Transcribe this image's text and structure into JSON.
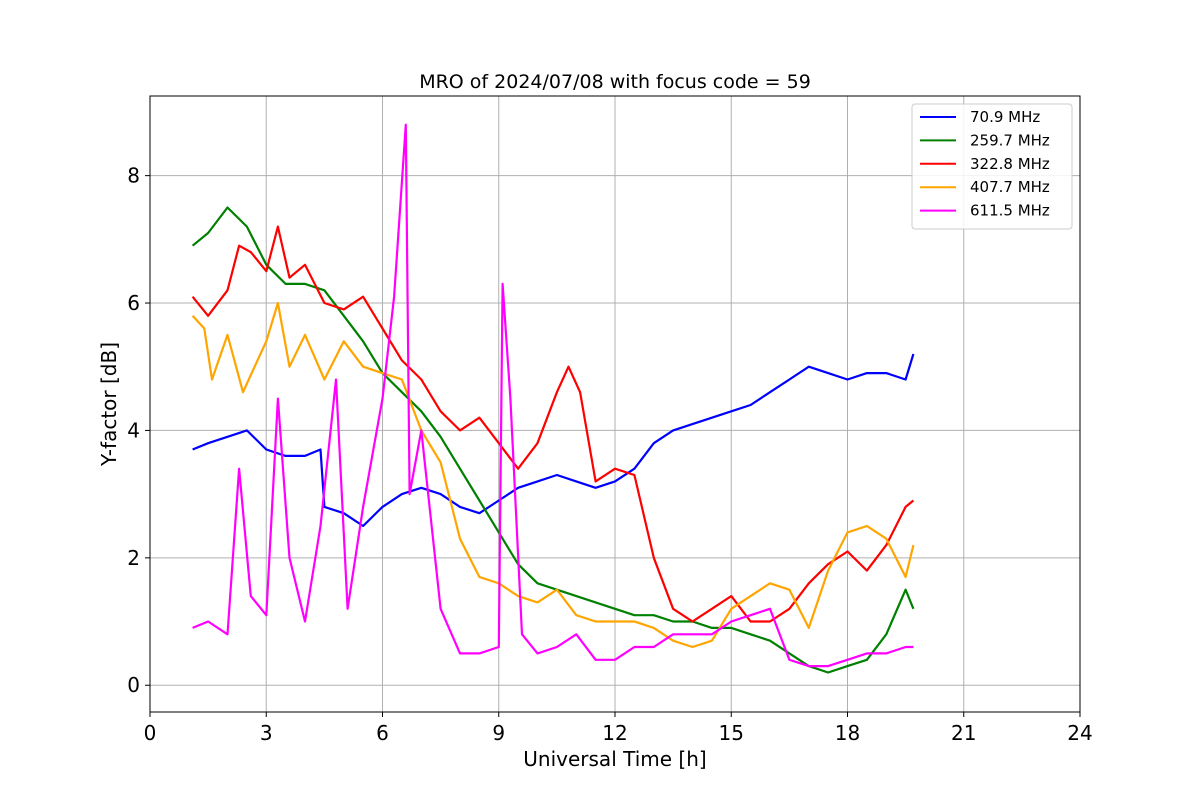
{
  "chart_data": {
    "type": "line",
    "title": "MRO of 2024/07/08 with focus code = 59",
    "xlabel": "Universal Time [h]",
    "ylabel": "Y-factor [dB]",
    "xlim": [
      0,
      24
    ],
    "ylim": [
      -0.42,
      9.25
    ],
    "xticks": [
      0,
      3,
      6,
      9,
      12,
      15,
      18,
      21,
      24
    ],
    "xtick_labels": [
      "0",
      "3",
      "6",
      "9",
      "12",
      "15",
      "18",
      "21",
      "24"
    ],
    "yticks": [
      0,
      2,
      4,
      6,
      8
    ],
    "ytick_labels": [
      "0",
      "2",
      "4",
      "6",
      "8"
    ],
    "grid": true,
    "legend_position": "top-right",
    "series": [
      {
        "name": " 70.9 MHz",
        "color": "#0000ff",
        "x": [
          1.1,
          1.5,
          2.0,
          2.5,
          3.0,
          3.5,
          4.0,
          4.4,
          4.5,
          5.0,
          5.5,
          6.0,
          6.5,
          7.0,
          7.5,
          8.0,
          8.5,
          9.0,
          9.5,
          10.0,
          10.5,
          11.0,
          11.5,
          12.0,
          12.5,
          13.0,
          13.5,
          14.0,
          14.5,
          15.0,
          15.5,
          16.0,
          16.5,
          17.0,
          17.5,
          18.0,
          18.5,
          19.0,
          19.5,
          19.7
        ],
        "y": [
          3.7,
          3.8,
          3.9,
          4.0,
          3.7,
          3.6,
          3.6,
          3.7,
          2.8,
          2.7,
          2.5,
          2.8,
          3.0,
          3.1,
          3.0,
          2.8,
          2.7,
          2.9,
          3.1,
          3.2,
          3.3,
          3.2,
          3.1,
          3.2,
          3.4,
          3.8,
          4.0,
          4.1,
          4.2,
          4.3,
          4.4,
          4.6,
          4.8,
          5.0,
          4.9,
          4.8,
          4.9,
          4.9,
          4.8,
          5.2
        ]
      },
      {
        "name": "259.7 MHz",
        "color": "#008000",
        "x": [
          1.1,
          1.5,
          2.0,
          2.5,
          3.0,
          3.5,
          4.0,
          4.5,
          5.0,
          5.5,
          6.0,
          6.5,
          7.0,
          7.5,
          8.0,
          8.5,
          9.0,
          9.5,
          10.0,
          10.5,
          11.0,
          11.5,
          12.0,
          12.5,
          13.0,
          13.5,
          14.0,
          14.5,
          15.0,
          15.5,
          16.0,
          16.5,
          17.0,
          17.5,
          18.0,
          18.5,
          19.0,
          19.5,
          19.7
        ],
        "y": [
          6.9,
          7.1,
          7.5,
          7.2,
          6.6,
          6.3,
          6.3,
          6.2,
          5.8,
          5.4,
          4.9,
          4.6,
          4.3,
          3.9,
          3.4,
          2.9,
          2.4,
          1.9,
          1.6,
          1.5,
          1.4,
          1.3,
          1.2,
          1.1,
          1.1,
          1.0,
          1.0,
          0.9,
          0.9,
          0.8,
          0.7,
          0.5,
          0.3,
          0.2,
          0.3,
          0.4,
          0.8,
          1.5,
          1.2
        ]
      },
      {
        "name": "322.8 MHz",
        "color": "#ff0000",
        "x": [
          1.1,
          1.5,
          2.0,
          2.3,
          2.6,
          3.0,
          3.3,
          3.6,
          4.0,
          4.5,
          5.0,
          5.5,
          6.0,
          6.5,
          7.0,
          7.5,
          8.0,
          8.5,
          9.0,
          9.5,
          10.0,
          10.5,
          10.8,
          11.1,
          11.5,
          12.0,
          12.5,
          13.0,
          13.5,
          14.0,
          14.5,
          15.0,
          15.5,
          16.0,
          16.5,
          17.0,
          17.5,
          18.0,
          18.5,
          19.0,
          19.5,
          19.7
        ],
        "y": [
          6.1,
          5.8,
          6.2,
          6.9,
          6.8,
          6.5,
          7.2,
          6.4,
          6.6,
          6.0,
          5.9,
          6.1,
          5.6,
          5.1,
          4.8,
          4.3,
          4.0,
          4.2,
          3.8,
          3.4,
          3.8,
          4.6,
          5.0,
          4.6,
          3.2,
          3.4,
          3.3,
          2.0,
          1.2,
          1.0,
          1.2,
          1.4,
          1.0,
          1.0,
          1.2,
          1.6,
          1.9,
          2.1,
          1.8,
          2.2,
          2.8,
          2.9
        ]
      },
      {
        "name": "407.7 MHz",
        "color": "#ffa500",
        "x": [
          1.1,
          1.4,
          1.6,
          2.0,
          2.4,
          2.7,
          3.0,
          3.3,
          3.6,
          4.0,
          4.5,
          5.0,
          5.5,
          6.0,
          6.5,
          7.0,
          7.5,
          8.0,
          8.5,
          9.0,
          9.5,
          10.0,
          10.5,
          11.0,
          11.5,
          12.0,
          12.5,
          13.0,
          13.5,
          14.0,
          14.5,
          15.0,
          15.5,
          16.0,
          16.5,
          17.0,
          17.5,
          18.0,
          18.5,
          19.0,
          19.5,
          19.7
        ],
        "y": [
          5.8,
          5.6,
          4.8,
          5.5,
          4.6,
          5.0,
          5.4,
          6.0,
          5.0,
          5.5,
          4.8,
          5.4,
          5.0,
          4.9,
          4.8,
          4.0,
          3.5,
          2.3,
          1.7,
          1.6,
          1.4,
          1.3,
          1.5,
          1.1,
          1.0,
          1.0,
          1.0,
          0.9,
          0.7,
          0.6,
          0.7,
          1.2,
          1.4,
          1.6,
          1.5,
          0.9,
          1.8,
          2.4,
          2.5,
          2.3,
          1.7,
          2.2
        ]
      },
      {
        "name": "611.5 MHz",
        "color": "#ff00ff",
        "x": [
          1.1,
          1.5,
          2.0,
          2.3,
          2.6,
          3.0,
          3.3,
          3.6,
          4.0,
          4.4,
          4.8,
          5.1,
          5.5,
          6.0,
          6.3,
          6.6,
          6.7,
          7.0,
          7.5,
          8.0,
          8.5,
          9.0,
          9.1,
          9.3,
          9.6,
          10.0,
          10.5,
          11.0,
          11.5,
          12.0,
          12.5,
          13.0,
          13.5,
          14.0,
          14.5,
          15.0,
          15.5,
          16.0,
          16.5,
          17.0,
          17.5,
          18.0,
          18.5,
          19.0,
          19.5,
          19.7
        ],
        "y": [
          0.9,
          1.0,
          0.8,
          3.4,
          1.4,
          1.1,
          4.5,
          2.0,
          1.0,
          2.5,
          4.8,
          1.2,
          2.8,
          4.5,
          6.1,
          8.8,
          3.0,
          4.0,
          1.2,
          0.5,
          0.5,
          0.6,
          6.3,
          4.5,
          0.8,
          0.5,
          0.6,
          0.8,
          0.4,
          0.4,
          0.6,
          0.6,
          0.8,
          0.8,
          0.8,
          1.0,
          1.1,
          1.2,
          0.4,
          0.3,
          0.3,
          0.4,
          0.5,
          0.5,
          0.6,
          0.6
        ]
      }
    ]
  }
}
